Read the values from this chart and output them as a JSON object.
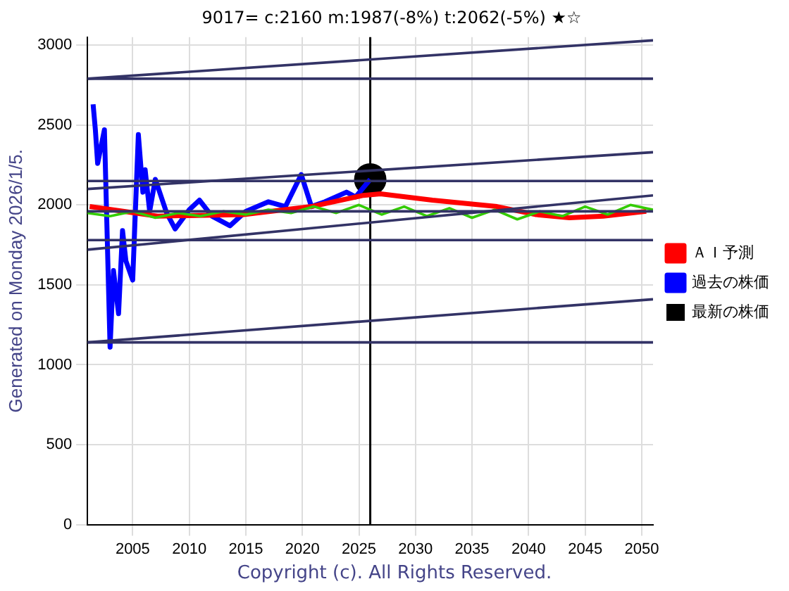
{
  "chart_data": {
    "type": "line",
    "title": "9017= c:2160 m:1987(-8%) t:2062(-5%) ★☆",
    "ylabel": "Generated on Monday 2026/1/5.",
    "annotations": [
      "Copyright (c). All Rights Reserved."
    ],
    "xlim": [
      2001,
      2051
    ],
    "xticks": [
      2005,
      2010,
      2015,
      2020,
      2025,
      2030,
      2035,
      2040,
      2045,
      2050
    ],
    "ylim": [
      0,
      3050
    ],
    "yticks": [
      0,
      500,
      1000,
      1500,
      2000,
      2500,
      3000
    ],
    "grid": true,
    "legend": "right",
    "line_style": "solid",
    "ref_lines": [
      {
        "axis": "x",
        "value": 2026,
        "color": "#000000"
      }
    ],
    "series": [
      {
        "color": "#333366",
        "x": [
          2001,
          2051
        ],
        "values": [
          2790,
          2790
        ]
      },
      {
        "color": "#333366",
        "x": [
          2001,
          2051
        ],
        "values": [
          2790,
          3030
        ]
      },
      {
        "color": "#333366",
        "x": [
          2001,
          2051
        ],
        "values": [
          2100,
          2330
        ]
      },
      {
        "color": "#333366",
        "x": [
          2001,
          2051
        ],
        "values": [
          2150,
          2150
        ]
      },
      {
        "color": "#333366",
        "x": [
          2001,
          2051
        ],
        "values": [
          1960,
          1960
        ]
      },
      {
        "color": "#333366",
        "x": [
          2001,
          2051
        ],
        "values": [
          1780,
          1780
        ]
      },
      {
        "color": "#333366",
        "x": [
          2001,
          2051
        ],
        "values": [
          1720,
          2060
        ]
      },
      {
        "color": "#333366",
        "x": [
          2001,
          2051
        ],
        "values": [
          1140,
          1140
        ]
      },
      {
        "color": "#333366",
        "x": [
          2001,
          2051
        ],
        "values": [
          1140,
          1410
        ]
      },
      {
        "color": "#33cc00",
        "x": [
          2001,
          2003,
          2005,
          2007,
          2009,
          2011,
          2013,
          2015,
          2017,
          2019,
          2021,
          2023,
          2025,
          2027,
          2029,
          2031,
          2033,
          2035,
          2037,
          2039,
          2041,
          2043,
          2045,
          2047,
          2049,
          2051
        ],
        "values": [
          1950,
          1930,
          1960,
          1920,
          1950,
          1930,
          1960,
          1940,
          1970,
          1950,
          1990,
          1950,
          2000,
          1940,
          1990,
          1930,
          1980,
          1920,
          1970,
          1910,
          1960,
          1930,
          1990,
          1940,
          2000,
          1970
        ]
      },
      {
        "name": "ＡＩ予測",
        "color": "#ff0000",
        "x": [
          2001.2,
          2007.2,
          2014.8,
          2020.8,
          2025.4,
          2026.9,
          2031.5,
          2037.2,
          2040.6,
          2043.6,
          2046.6,
          2050.4
        ],
        "values": [
          1990,
          1930,
          1940,
          1990,
          2060,
          2070,
          2030,
          1990,
          1940,
          1920,
          1930,
          1960
        ]
      },
      {
        "name": "過去の株価",
        "color": "#0000ff",
        "x": [
          2001.5,
          2001.7,
          2001.9,
          2002.5,
          2003.0,
          2003.3,
          2003.75,
          2004.1,
          2004.4,
          2005.0,
          2005.5,
          2005.9,
          2006.1,
          2006.5,
          2007.0,
          2008.0,
          2008.75,
          2010.0,
          2010.9,
          2012.0,
          2013.6,
          2015.0,
          2017.0,
          2018.5,
          2019.9,
          2020.8,
          2022.0,
          2023.9,
          2024.7,
          2026.0
        ],
        "values": [
          2630,
          2470,
          2260,
          2470,
          1110,
          1590,
          1320,
          1840,
          1650,
          1530,
          2440,
          2080,
          2220,
          1960,
          2160,
          1950,
          1850,
          1970,
          2030,
          1930,
          1870,
          1960,
          2020,
          1990,
          2190,
          1990,
          2020,
          2080,
          2050,
          2160
        ]
      },
      {
        "type": "scatter",
        "name": "最新の株価",
        "color": "#000000",
        "marker": "circle",
        "x": [
          2026
        ],
        "values": [
          2160
        ]
      }
    ]
  }
}
